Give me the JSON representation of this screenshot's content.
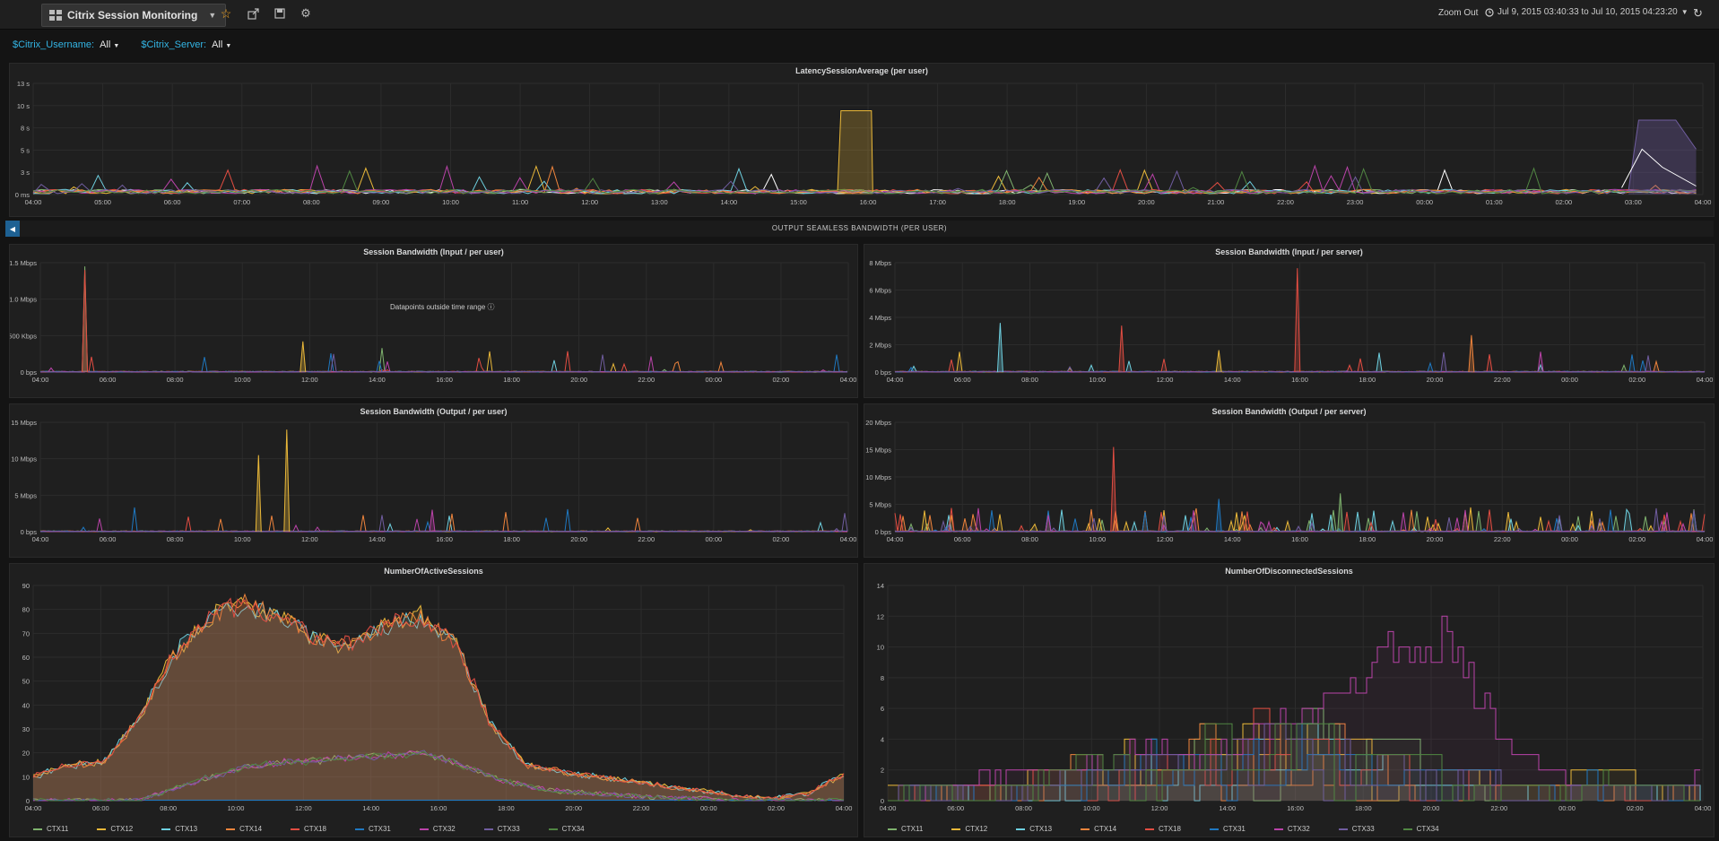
{
  "nav": {
    "dashboard_title": "Citrix Session Monitoring",
    "zoom_out": "Zoom Out",
    "time_range": "Jul 9, 2015 03:40:33 to Jul 10, 2015 04:23:20",
    "icons": [
      "grid-icon",
      "star-icon",
      "share-icon",
      "save-icon",
      "gear-icon",
      "clock-icon",
      "refresh-icon"
    ]
  },
  "variables": [
    {
      "label": "$Citrix_Username:",
      "value": "All"
    },
    {
      "label": "$Citrix_Server:",
      "value": "All"
    }
  ],
  "row": {
    "title": "OUTPUT SEAMLESS BANDWIDTH (PER USER)"
  },
  "colors": {
    "CTX11": "#7eb26d",
    "CTX12": "#eab839",
    "CTX13": "#6ed0e0",
    "CTX14": "#ef843c",
    "CTX18": "#e24d42",
    "CTX31": "#1f78c1",
    "CTX32": "#ba43a9",
    "CTX33": "#705da0",
    "CTX34": "#508642"
  },
  "panels": {
    "latency": {
      "title": "LatencySessionAverage (per user)",
      "y_ticks": [
        "13 s",
        "10 s",
        "8 s",
        "5 s",
        "3 s",
        "0 ms"
      ],
      "x_ticks": [
        "04:00",
        "05:00",
        "06:00",
        "07:00",
        "08:00",
        "09:00",
        "10:00",
        "11:00",
        "12:00",
        "13:00",
        "14:00",
        "15:00",
        "16:00",
        "17:00",
        "18:00",
        "19:00",
        "20:00",
        "21:00",
        "22:00",
        "23:00",
        "00:00",
        "01:00",
        "02:00",
        "03:00",
        "04:00"
      ]
    },
    "bw_in_user": {
      "title": "Session Bandwidth (Input / per user)",
      "note": "Datapoints outside time range",
      "y_ticks": [
        "1.5 Mbps",
        "1.0 Mbps",
        "500 Kbps",
        "0 bps"
      ],
      "x_ticks": [
        "04:00",
        "06:00",
        "08:00",
        "10:00",
        "12:00",
        "14:00",
        "16:00",
        "18:00",
        "20:00",
        "22:00",
        "00:00",
        "02:00",
        "04:00"
      ]
    },
    "bw_in_server": {
      "title": "Session Bandwidth (Input / per server)",
      "y_ticks": [
        "8 Mbps",
        "6 Mbps",
        "4 Mbps",
        "2 Mbps",
        "0 bps"
      ],
      "x_ticks": [
        "04:00",
        "06:00",
        "08:00",
        "10:00",
        "12:00",
        "14:00",
        "16:00",
        "18:00",
        "20:00",
        "22:00",
        "00:00",
        "02:00",
        "04:00"
      ]
    },
    "bw_out_user": {
      "title": "Session Bandwidth (Output / per user)",
      "y_ticks": [
        "15 Mbps",
        "10 Mbps",
        "5 Mbps",
        "0 bps"
      ],
      "x_ticks": [
        "04:00",
        "06:00",
        "08:00",
        "10:00",
        "12:00",
        "14:00",
        "16:00",
        "18:00",
        "20:00",
        "22:00",
        "00:00",
        "02:00",
        "04:00"
      ]
    },
    "bw_out_server": {
      "title": "Session Bandwidth (Output / per server)",
      "y_ticks": [
        "20 Mbps",
        "15 Mbps",
        "10 Mbps",
        "5 Mbps",
        "0 bps"
      ],
      "x_ticks": [
        "04:00",
        "06:00",
        "08:00",
        "10:00",
        "12:00",
        "14:00",
        "16:00",
        "18:00",
        "20:00",
        "22:00",
        "00:00",
        "02:00",
        "04:00"
      ]
    },
    "active": {
      "title": "NumberOfActiveSessions",
      "y_ticks": [
        "90",
        "80",
        "70",
        "60",
        "50",
        "40",
        "30",
        "20",
        "10",
        "0"
      ],
      "x_ticks": [
        "04:00",
        "06:00",
        "08:00",
        "10:00",
        "12:00",
        "14:00",
        "16:00",
        "18:00",
        "20:00",
        "22:00",
        "00:00",
        "02:00",
        "04:00"
      ],
      "legend": [
        "CTX11",
        "CTX12",
        "CTX13",
        "CTX14",
        "CTX18",
        "CTX31",
        "CTX32",
        "CTX33",
        "CTX34"
      ]
    },
    "disconnected": {
      "title": "NumberOfDisconnectedSessions",
      "y_ticks": [
        "14",
        "12",
        "10",
        "8",
        "6",
        "4",
        "2",
        "0"
      ],
      "x_ticks": [
        "04:00",
        "06:00",
        "08:00",
        "10:00",
        "12:00",
        "14:00",
        "16:00",
        "18:00",
        "20:00",
        "22:00",
        "00:00",
        "02:00",
        "04:00"
      ],
      "legend": [
        "CTX11",
        "CTX12",
        "CTX13",
        "CTX14",
        "CTX18",
        "CTX31",
        "CTX32",
        "CTX33",
        "CTX34"
      ]
    }
  },
  "chart_data": [
    {
      "type": "line",
      "title": "LatencySessionAverage (per user)",
      "ylim": [
        0,
        13
      ],
      "x": [
        "04:00",
        "06:00",
        "08:00",
        "10:00",
        "11:00",
        "13:00",
        "15:55",
        "16:00",
        "19:00",
        "22:00",
        "03:00",
        "03:40",
        "04:00",
        "04:20"
      ],
      "series": [
        {
          "values": [
            0.3,
            1.2,
            0.8,
            1.6,
            3.5,
            0.8,
            9.8,
            9.8,
            0.3,
            0.4,
            0.5,
            5.3,
            3.1,
            1.0
          ]
        }
      ]
    },
    {
      "type": "area",
      "title": "NumberOfActiveSessions",
      "ylim": [
        0,
        90
      ],
      "x": [
        "04:00",
        "06:00",
        "07:00",
        "08:00",
        "09:00",
        "10:00",
        "11:00",
        "12:00",
        "13:00",
        "14:00",
        "15:00",
        "16:00",
        "17:00",
        "18:00",
        "19:00",
        "20:00",
        "21:00",
        "22:00",
        "23:00",
        "00:00",
        "01:00",
        "02:00",
        "03:00",
        "04:00"
      ],
      "series": [
        {
          "name": "CTX14",
          "values": [
            10,
            15,
            16,
            35,
            62,
            78,
            83,
            78,
            68,
            66,
            74,
            78,
            66,
            32,
            15,
            12,
            10,
            8,
            6,
            4,
            2,
            1,
            3,
            11
          ]
        },
        {
          "name": "CTX32",
          "values": [
            0,
            0,
            0,
            0,
            5,
            10,
            14,
            16,
            17,
            18,
            19,
            20,
            16,
            10,
            6,
            4,
            3,
            2,
            1,
            1,
            0,
            0,
            0,
            0
          ]
        }
      ]
    },
    {
      "type": "line",
      "title": "NumberOfDisconnectedSessions",
      "ylim": [
        0,
        14
      ],
      "x": [
        "04:00",
        "06:00",
        "08:00",
        "10:00",
        "12:00",
        "14:00",
        "16:00",
        "17:00",
        "18:00",
        "18:30",
        "19:00",
        "19:30",
        "20:00",
        "22:00",
        "00:00",
        "02:00",
        "04:00"
      ],
      "series": [
        {
          "name": "CTX32",
          "values": [
            0,
            1,
            2,
            2,
            3,
            4,
            3,
            5,
            6,
            8,
            12,
            12,
            5,
            2,
            1,
            1,
            2
          ]
        },
        {
          "name": "CTX11",
          "values": [
            1,
            2,
            1,
            3,
            4,
            5,
            6,
            7,
            8,
            6,
            4,
            3,
            2,
            2,
            2,
            1,
            2
          ]
        }
      ]
    }
  ]
}
